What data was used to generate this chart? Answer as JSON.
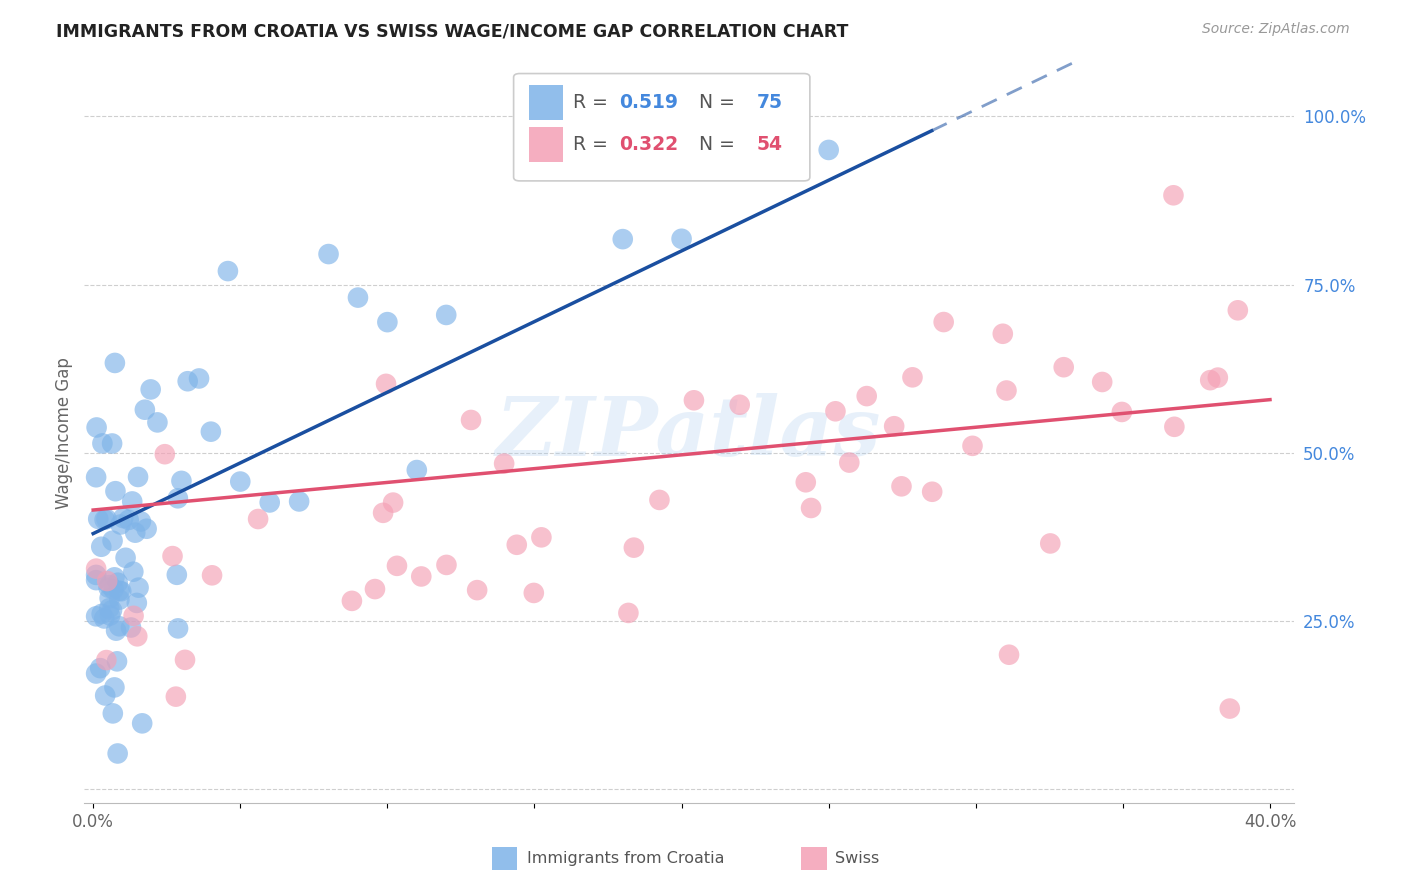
{
  "title": "IMMIGRANTS FROM CROATIA VS SWISS WAGE/INCOME GAP CORRELATION CHART",
  "source": "Source: ZipAtlas.com",
  "ylabel": "Wage/Income Gap",
  "legend_label1": "Immigrants from Croatia",
  "legend_label2": "Swiss",
  "blue_color": "#7EB3E8",
  "pink_color": "#F4A0B5",
  "blue_line_color": "#1A4FA0",
  "pink_line_color": "#E05070",
  "right_axis_color": "#4488DD",
  "watermark": "ZIPatlas",
  "background_color": "#FFFFFF",
  "grid_color": "#BBBBBB",
  "xlim": [
    0.0,
    0.4
  ],
  "ylim": [
    0.0,
    1.0
  ],
  "y_ticks_right": [
    0.0,
    0.25,
    0.5,
    0.75,
    1.0
  ],
  "y_tick_labels_right": [
    "",
    "25.0%",
    "50.0%",
    "75.0%",
    "100.0%"
  ],
  "blue_line_x0": 0.0,
  "blue_line_y0": 0.38,
  "blue_line_slope": 2.1,
  "blue_line_solid_end": 0.285,
  "pink_line_x0": 0.0,
  "pink_line_y0": 0.415,
  "pink_line_slope": 0.41
}
